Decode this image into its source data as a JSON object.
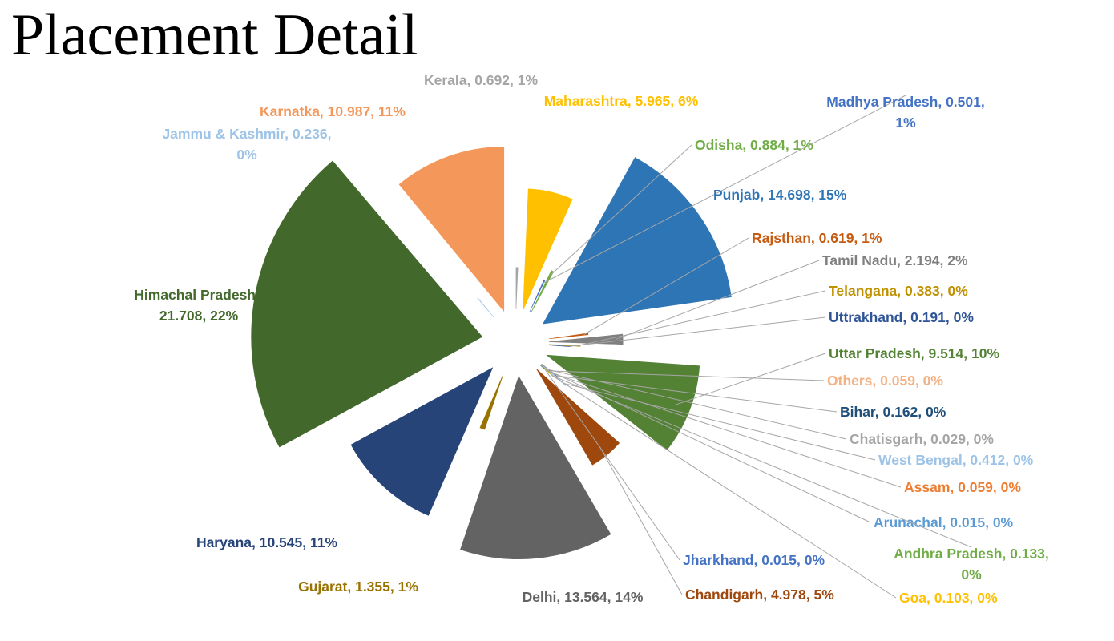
{
  "title": "Placement Detail",
  "chart_data": {
    "type": "pie",
    "variant": "exploded",
    "title": "Placement Detail",
    "data_labels": "category, value, percentage",
    "legend": "none",
    "slices": [
      {
        "name": "Kerala",
        "value": 0.692,
        "percent": "1%",
        "color": "#a5a5a5"
      },
      {
        "name": "Maharashtra",
        "value": 5.965,
        "percent": "6%",
        "color": "#ffc000"
      },
      {
        "name": "Madhya Pradesh",
        "value": 0.501,
        "percent": "1%",
        "color": "#4472c4"
      },
      {
        "name": "Odisha",
        "value": 0.884,
        "percent": "1%",
        "color": "#70ad47"
      },
      {
        "name": "Punjab",
        "value": 14.698,
        "percent": "15%",
        "color": "#2e75b6"
      },
      {
        "name": "Rajsthan",
        "value": 0.619,
        "percent": "1%",
        "color": "#c55a11"
      },
      {
        "name": "Tamil Nadu",
        "value": 2.194,
        "percent": "2%",
        "color": "#7f7f7f"
      },
      {
        "name": "Telangana",
        "value": 0.383,
        "percent": "0%",
        "color": "#bf9000"
      },
      {
        "name": "Uttrakhand",
        "value": 0.191,
        "percent": "0%",
        "color": "#2f5597"
      },
      {
        "name": "Uttar Pradesh",
        "value": 9.514,
        "percent": "10%",
        "color": "#548235"
      },
      {
        "name": "Others",
        "value": 0.059,
        "percent": "0%",
        "color": "#f4b183"
      },
      {
        "name": "Bihar",
        "value": 0.162,
        "percent": "0%",
        "color": "#1f4e79"
      },
      {
        "name": "Chatisgarh",
        "value": 0.029,
        "percent": "0%",
        "color": "#a5a5a5"
      },
      {
        "name": "West Bengal",
        "value": 0.412,
        "percent": "0%",
        "color": "#9dc3e6"
      },
      {
        "name": "Assam",
        "value": 0.059,
        "percent": "0%",
        "color": "#ed7d31"
      },
      {
        "name": "Arunachal",
        "value": 0.015,
        "percent": "0%",
        "color": "#5b9bd5"
      },
      {
        "name": "Andhra Pradesh",
        "value": 0.133,
        "percent": "0%",
        "color": "#70ad47"
      },
      {
        "name": "Goa",
        "value": 0.103,
        "percent": "0%",
        "color": "#ffc000"
      },
      {
        "name": "Jharkhand",
        "value": 0.015,
        "percent": "0%",
        "color": "#4472c4"
      },
      {
        "name": "Chandigarh",
        "value": 4.978,
        "percent": "5%",
        "color": "#9e480e"
      },
      {
        "name": "Delhi",
        "value": 13.564,
        "percent": "14%",
        "color": "#636363"
      },
      {
        "name": "Gujarat",
        "value": 1.355,
        "percent": "1%",
        "color": "#997300"
      },
      {
        "name": "Haryana",
        "value": 10.545,
        "percent": "11%",
        "color": "#264478"
      },
      {
        "name": "Himachal Pradesh",
        "value": 21.708,
        "percent": "22%",
        "color": "#43682b"
      },
      {
        "name": "Jammu & Kashmir",
        "value": 0.236,
        "percent": "0%",
        "color": "#9dc3e6"
      },
      {
        "name": "Karnatka",
        "value": 10.987,
        "percent": "11%",
        "color": "#f4975a"
      }
    ]
  }
}
